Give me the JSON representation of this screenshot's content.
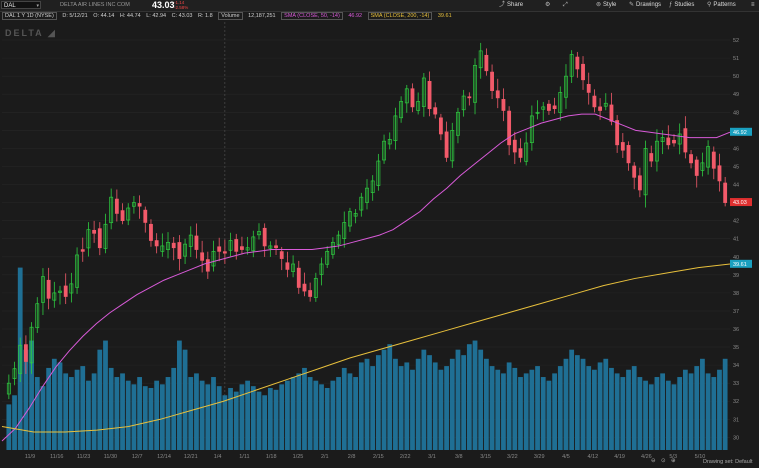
{
  "toolbar": {
    "symbol": "DAL",
    "company": "DELTA AIR LINES INC COM",
    "price": "43.03",
    "change_abs": "-1.14",
    "change_pct": "-2.58%",
    "buttons": [
      "Share",
      "Style",
      "Drawings",
      "Studies",
      "Patterns"
    ]
  },
  "ohlc_bar": {
    "timeframe": "DAL 1 Y 1D (NYSE)",
    "date": "D: 5/12/21",
    "open": "O: 44.14",
    "high": "H: 44.74",
    "low": "L: 42.94",
    "close": "C: 43.03",
    "range": "R: 1.8",
    "volume_label": "Volume",
    "volume_value": "12,187,251",
    "sma50_label": "SMA (CLOSE, 50, -14)",
    "sma50_value": "46.92",
    "sma200_label": "SMA (CLOSE, 200, -14)",
    "sma200_value": "39.61"
  },
  "logo_text": "DELTA",
  "price_tags": {
    "last": "43.03",
    "sma50": "46.92",
    "sma200": "39.61"
  },
  "footer": {
    "drawing_set": "Drawing set: Default"
  },
  "colors": {
    "up": "#2ecc40",
    "down": "#f25a6a",
    "sma50": "#d85ad8",
    "sma200": "#e8c03c",
    "volume": "#1f6f94",
    "last_tag": "#e03030",
    "sma50_tag": "#1aa0c0"
  },
  "chart_data": {
    "type": "candlestick",
    "y_ticks": [
      30,
      31,
      32,
      33,
      34,
      35,
      36,
      37,
      38,
      39,
      40,
      41,
      42,
      43,
      44,
      45,
      46,
      47,
      48,
      49,
      50,
      51,
      52
    ],
    "ylim": [
      29.3,
      53
    ],
    "x_ticks": [
      "11/9",
      "11/16",
      "11/23",
      "11/30",
      "12/7",
      "12/14",
      "12/21",
      "1/4",
      "1/11",
      "1/18",
      "1/25",
      "2/1",
      "2/8",
      "2/15",
      "2/22",
      "3/1",
      "3/8",
      "3/15",
      "3/22",
      "3/29",
      "4/5",
      "4/12",
      "4/19",
      "4/26",
      "5/3",
      "5/10"
    ],
    "series": [
      {
        "name": "DAL",
        "close": [
          33.0,
          33.8,
          35.1,
          34.2,
          36.1,
          37.4,
          38.9,
          37.7,
          38.0,
          38.1,
          37.8,
          38.5,
          40.1,
          40.3,
          41.5,
          41.3,
          40.5,
          41.8,
          43.3,
          42.4,
          42.0,
          42.7,
          43.0,
          42.8,
          41.9,
          40.9,
          40.6,
          40.6,
          40.8,
          40.5,
          39.9,
          40.7,
          41.2,
          40.4,
          39.8,
          39.2,
          40.3,
          40.3,
          40.2,
          40.9,
          40.3,
          40.4,
          40.5,
          41.1,
          41.4,
          40.6,
          40.6,
          40.5,
          39.9,
          39.3,
          39.6,
          38.3,
          38.1,
          37.8,
          38.8,
          39.6,
          40.3,
          40.8,
          41.2,
          41.9,
          42.5,
          42.4,
          43.3,
          43.8,
          44.2,
          45.3,
          46.4,
          46.5,
          47.8,
          48.6,
          49.3,
          48.3,
          48.6,
          49.9,
          48.2,
          47.9,
          46.8,
          45.5,
          47.0,
          48.0,
          48.9,
          48.8,
          50.6,
          51.4,
          50.3,
          49.2,
          48.8,
          48.1,
          46.2,
          45.8,
          45.5,
          46.3,
          47.8,
          48.0,
          48.3,
          48.1,
          48.2,
          49.1,
          50.0,
          51.2,
          50.4,
          49.8,
          49.1,
          48.3,
          48.1,
          48.5,
          47.5,
          46.2,
          45.9,
          45.2,
          44.4,
          43.7,
          46.0,
          45.3,
          46.4,
          46.6,
          46.2,
          46.3,
          46.8,
          45.8,
          45.2,
          44.5,
          45.2,
          46.1,
          44.9,
          44.2,
          43.0
        ]
      },
      {
        "name": "SMA 50",
        "values": [
          29.8,
          30.5,
          31.6,
          32.8,
          33.9,
          34.8,
          35.6,
          36.3,
          36.9,
          37.4,
          37.9,
          38.3,
          38.7,
          39.0,
          39.3,
          39.6,
          39.8,
          40.0,
          40.2,
          40.3,
          40.4,
          40.4,
          40.4,
          40.4,
          40.5,
          40.6,
          40.8,
          41.0,
          41.2,
          41.5,
          42.0,
          42.5,
          43.2,
          43.8,
          44.5,
          45.1,
          45.7,
          46.3,
          46.8,
          47.1,
          47.4,
          47.6,
          47.8,
          47.9,
          47.9,
          47.6,
          47.3,
          47.0,
          46.9,
          46.8,
          46.7,
          46.6,
          46.6,
          46.6,
          46.9
        ]
      },
      {
        "name": "SMA 200",
        "values": [
          30.6,
          30.3,
          30.3,
          30.4,
          30.6,
          31.0,
          31.5,
          32.0,
          32.6,
          33.2,
          33.8,
          34.4,
          34.9,
          35.4,
          35.9,
          36.4,
          36.9,
          37.4,
          37.9,
          38.4,
          38.8,
          39.1,
          39.4,
          39.6
        ]
      }
    ],
    "volume": [
      0.25,
      0.3,
      1.0,
      0.55,
      0.6,
      0.4,
      0.35,
      0.45,
      0.5,
      0.48,
      0.42,
      0.4,
      0.44,
      0.46,
      0.38,
      0.42,
      0.55,
      0.6,
      0.45,
      0.4,
      0.42,
      0.38,
      0.36,
      0.4,
      0.35,
      0.34,
      0.38,
      0.36,
      0.4,
      0.45,
      0.6,
      0.55,
      0.4,
      0.42,
      0.38,
      0.36,
      0.4,
      0.35,
      0.3,
      0.34,
      0.32,
      0.36,
      0.38,
      0.35,
      0.32,
      0.3,
      0.34,
      0.33,
      0.36,
      0.38,
      0.4,
      0.42,
      0.45,
      0.4,
      0.38,
      0.36,
      0.34,
      0.38,
      0.4,
      0.45,
      0.42,
      0.4,
      0.48,
      0.5,
      0.46,
      0.52,
      0.55,
      0.58,
      0.5,
      0.46,
      0.48,
      0.44,
      0.5,
      0.55,
      0.52,
      0.48,
      0.44,
      0.46,
      0.5,
      0.55,
      0.52,
      0.58,
      0.6,
      0.55,
      0.5,
      0.46,
      0.44,
      0.42,
      0.48,
      0.45,
      0.4,
      0.42,
      0.44,
      0.46,
      0.4,
      0.38,
      0.42,
      0.46,
      0.5,
      0.55,
      0.52,
      0.5,
      0.46,
      0.44,
      0.48,
      0.5,
      0.45,
      0.42,
      0.4,
      0.44,
      0.46,
      0.4,
      0.38,
      0.36,
      0.4,
      0.42,
      0.38,
      0.36,
      0.4,
      0.44,
      0.42,
      0.46,
      0.5,
      0.42,
      0.4,
      0.44,
      0.5
    ]
  }
}
